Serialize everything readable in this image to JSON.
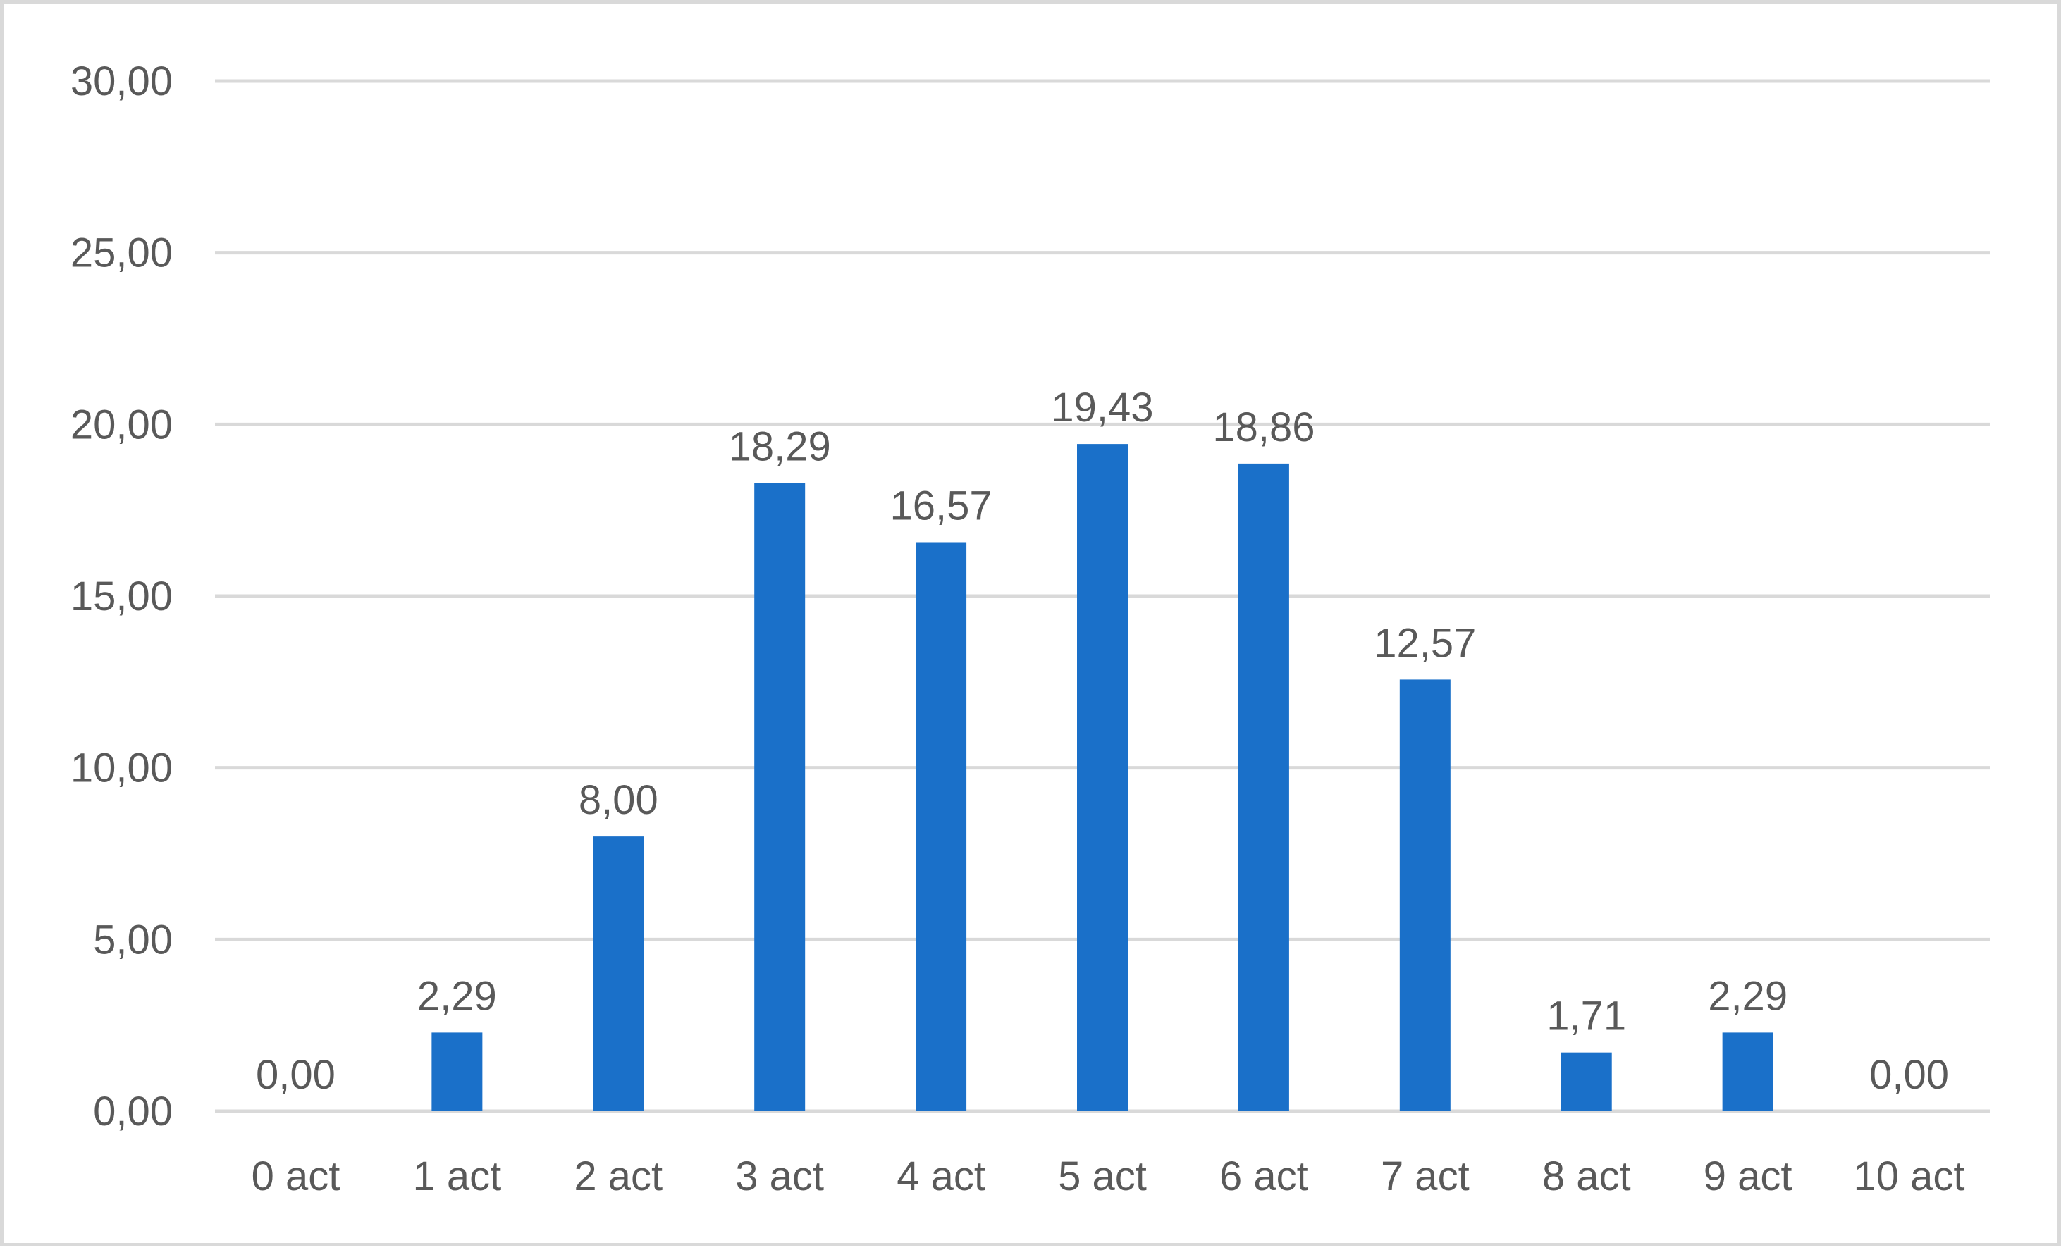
{
  "chart_data": {
    "type": "bar",
    "categories": [
      "0 act",
      "1 act",
      "2 act",
      "3 act",
      "4 act",
      "5 act",
      "6 act",
      "7 act",
      "8 act",
      "9 act",
      "10 act"
    ],
    "values": [
      0.0,
      2.29,
      8.0,
      18.29,
      16.57,
      19.43,
      18.86,
      12.57,
      1.71,
      2.29,
      0.0
    ],
    "value_labels": [
      "0,00",
      "2,29",
      "8,00",
      "18,29",
      "16,57",
      "19,43",
      "18,86",
      "12,57",
      "1,71",
      "2,29",
      "0,00"
    ],
    "y_ticks": [
      0,
      5,
      10,
      15,
      20,
      25,
      30
    ],
    "y_tick_labels": [
      "0,00",
      "5,00",
      "10,00",
      "15,00",
      "20,00",
      "25,00",
      "30,00"
    ],
    "title": "",
    "xlabel": "",
    "ylabel": "",
    "ylim": [
      0,
      30
    ],
    "grid": true,
    "legend": "none",
    "colors": {
      "bar": "#1a70c9",
      "gridline": "#d9d9d9",
      "text": "#595959",
      "border": "#d9d9d9"
    }
  }
}
